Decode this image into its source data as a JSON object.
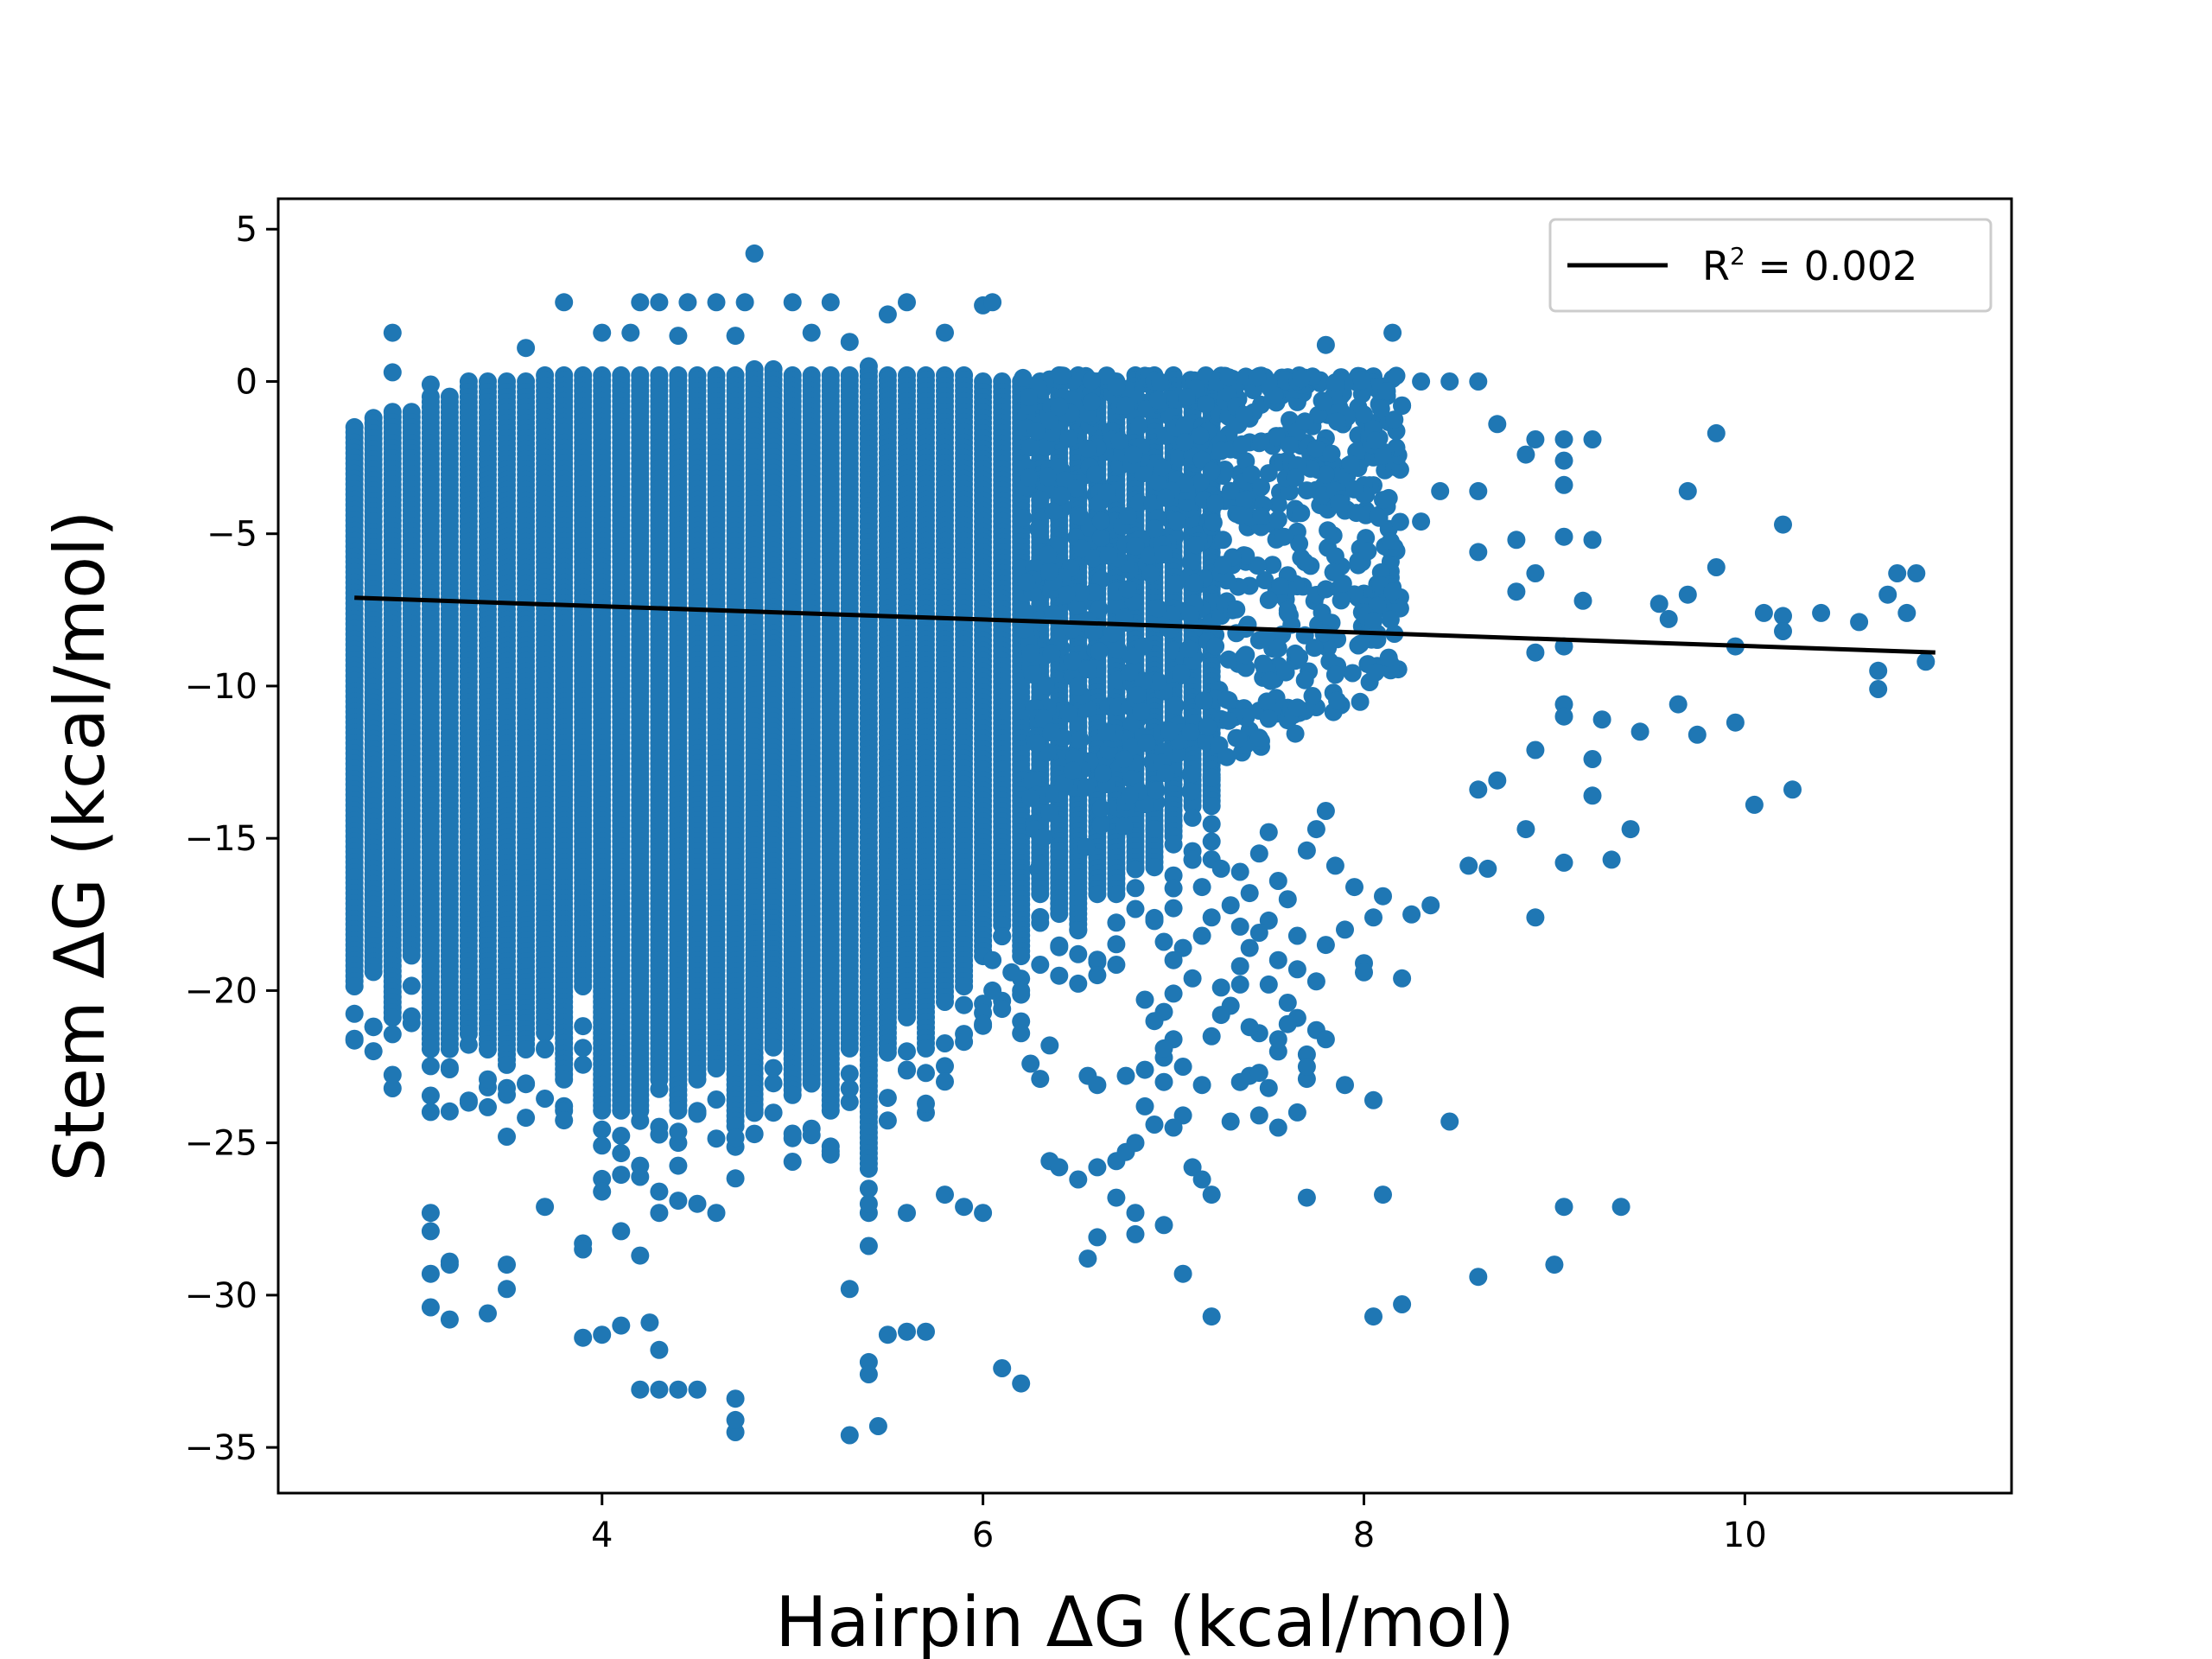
{
  "chart_data": {
    "type": "scatter",
    "title": "",
    "xlabel": "Hairpin ΔG (kcal/mol)",
    "ylabel": "Stem  ΔG (kcal/mol)",
    "xlim": [
      2.3,
      11.4
    ],
    "ylim": [
      -36.5,
      6.0
    ],
    "x_ticks": [
      4,
      6,
      8,
      10
    ],
    "y_ticks": [
      5,
      0,
      -5,
      -10,
      -15,
      -20,
      -25,
      -30,
      -35
    ],
    "grid": false,
    "legend": {
      "position": "top-right",
      "entries": [
        {
          "label_base": "R",
          "label_sup": "2",
          "label_rest": " = 0.002"
        }
      ]
    },
    "colors": {
      "points": "#1f77b4",
      "fit_line": "#000000",
      "axes": "#000000",
      "legend_border": "#cccccc"
    },
    "fit_line": {
      "x": [
        2.7,
        11.0
      ],
      "y": [
        -7.1,
        -8.9
      ]
    },
    "series": [
      {
        "type": "scatter",
        "column_x": [
          2.7,
          2.8,
          2.9,
          3.0,
          3.1,
          3.2,
          3.3,
          3.4,
          3.5,
          3.6,
          3.7,
          3.8,
          3.9,
          4.0,
          4.1,
          4.2,
          4.3,
          4.4,
          4.5,
          4.6,
          4.7,
          4.8,
          4.9,
          5.0,
          5.1,
          5.2,
          5.3,
          5.4,
          5.5,
          5.6,
          5.7,
          5.8,
          5.9,
          6.0,
          6.1,
          6.2,
          6.3,
          6.4,
          6.5,
          6.6,
          6.7,
          6.8,
          6.9,
          7.0,
          7.1,
          7.2
        ],
        "column_ymin": [
          -20,
          -19.5,
          -21,
          -19,
          -22,
          -22,
          -21.5,
          -22,
          -22.5,
          -22,
          -21.5,
          -23,
          -20,
          -24,
          -24,
          -24,
          -23,
          -24,
          -23,
          -22.5,
          -24.5,
          -24,
          -22,
          -23.5,
          -23,
          -24,
          -22,
          -26,
          -22,
          -21,
          -22,
          -20.5,
          -20,
          -19,
          -18,
          -19,
          -17,
          -17.5,
          -18,
          -17,
          -17,
          -16,
          -16,
          -15,
          -14,
          -14
        ],
        "column_ymax": [
          -1.5,
          -1.2,
          -1.0,
          -1.0,
          -0.5,
          -0.5,
          0.0,
          0.0,
          0.0,
          0.0,
          0.2,
          0.2,
          0.2,
          0.2,
          0.2,
          0.2,
          0.2,
          0.2,
          0.2,
          0.2,
          0.2,
          0.4,
          0.4,
          0.2,
          0.2,
          0.2,
          0.2,
          0.5,
          0.2,
          0.2,
          0.2,
          0.2,
          0.2,
          0.0,
          0.0,
          0.0,
          0.0,
          0.2,
          0.2,
          0.0,
          0.0,
          0.2,
          0.2,
          0.2,
          0.0,
          0.0
        ],
        "points": [
          [
            4.8,
            4.2
          ],
          [
            3.8,
            2.6
          ],
          [
            4.2,
            2.6
          ],
          [
            4.3,
            2.6
          ],
          [
            4.45,
            2.6
          ],
          [
            4.6,
            2.6
          ],
          [
            4.75,
            2.6
          ],
          [
            5.0,
            2.6
          ],
          [
            5.2,
            2.6
          ],
          [
            5.6,
            2.6
          ],
          [
            6.0,
            2.5
          ],
          [
            6.05,
            2.6
          ],
          [
            5.5,
            2.2
          ],
          [
            2.9,
            1.6
          ],
          [
            3.6,
            1.1
          ],
          [
            4.0,
            1.6
          ],
          [
            4.15,
            1.6
          ],
          [
            4.4,
            1.5
          ],
          [
            4.7,
            1.5
          ],
          [
            5.1,
            1.6
          ],
          [
            5.3,
            1.3
          ],
          [
            5.8,
            1.6
          ],
          [
            7.8,
            1.2
          ],
          [
            8.15,
            1.6
          ],
          [
            2.9,
            0.3
          ],
          [
            3.1,
            -0.1
          ],
          [
            8.3,
            0.0
          ],
          [
            8.45,
            0.0
          ],
          [
            8.6,
            0.0
          ],
          [
            8.2,
            -0.8
          ],
          [
            8.7,
            -1.4
          ],
          [
            8.9,
            -1.9
          ],
          [
            9.05,
            -1.9
          ],
          [
            9.2,
            -1.9
          ],
          [
            8.85,
            -2.4
          ],
          [
            9.05,
            -2.6
          ],
          [
            9.85,
            -1.7
          ],
          [
            9.05,
            -3.4
          ],
          [
            8.4,
            -3.6
          ],
          [
            8.6,
            -3.6
          ],
          [
            9.7,
            -3.6
          ],
          [
            8.3,
            -4.6
          ],
          [
            9.05,
            -5.1
          ],
          [
            9.2,
            -5.2
          ],
          [
            8.8,
            -5.2
          ],
          [
            10.2,
            -4.7
          ],
          [
            8.6,
            -5.6
          ],
          [
            8.9,
            -6.3
          ],
          [
            9.85,
            -6.1
          ],
          [
            8.8,
            -6.9
          ],
          [
            9.15,
            -7.2
          ],
          [
            9.55,
            -7.3
          ],
          [
            9.6,
            -7.8
          ],
          [
            9.7,
            -7.0
          ],
          [
            10.1,
            -7.6
          ],
          [
            10.2,
            -7.7
          ],
          [
            10.4,
            -7.6
          ],
          [
            10.6,
            -7.9
          ],
          [
            10.2,
            -8.2
          ],
          [
            10.75,
            -7.0
          ],
          [
            10.85,
            -7.6
          ],
          [
            10.8,
            -6.3
          ],
          [
            10.9,
            -6.3
          ],
          [
            10.95,
            -9.2
          ],
          [
            10.7,
            -9.5
          ],
          [
            10.7,
            -10.1
          ],
          [
            9.95,
            -8.7
          ],
          [
            9.05,
            -8.7
          ],
          [
            8.9,
            -8.9
          ],
          [
            9.05,
            -10.6
          ],
          [
            9.05,
            -11.0
          ],
          [
            9.25,
            -11.1
          ],
          [
            9.45,
            -11.5
          ],
          [
            9.65,
            -10.6
          ],
          [
            9.75,
            -11.6
          ],
          [
            9.95,
            -11.2
          ],
          [
            8.9,
            -12.1
          ],
          [
            8.7,
            -13.1
          ],
          [
            8.6,
            -13.4
          ],
          [
            9.2,
            -12.4
          ],
          [
            9.2,
            -13.6
          ],
          [
            10.25,
            -13.4
          ],
          [
            10.05,
            -13.9
          ],
          [
            8.85,
            -14.7
          ],
          [
            9.4,
            -14.7
          ],
          [
            9.3,
            -15.7
          ],
          [
            9.05,
            -15.8
          ],
          [
            8.55,
            -15.9
          ],
          [
            8.65,
            -16.0
          ],
          [
            8.9,
            -17.6
          ],
          [
            8.35,
            -17.2
          ],
          [
            8.25,
            -17.5
          ],
          [
            8.2,
            -19.6
          ],
          [
            8.0,
            -19.1
          ],
          [
            8.0,
            -19.4
          ],
          [
            8.45,
            -24.3
          ],
          [
            7.9,
            -23.1
          ],
          [
            8.05,
            -23.6
          ],
          [
            8.1,
            -26.7
          ],
          [
            8.05,
            -30.7
          ],
          [
            8.2,
            -30.3
          ],
          [
            8.6,
            -29.4
          ],
          [
            9.0,
            -29.0
          ],
          [
            9.05,
            -27.1
          ],
          [
            9.35,
            -27.1
          ],
          [
            7.7,
            -26.8
          ],
          [
            7.2,
            -30.7
          ],
          [
            7.05,
            -29.3
          ],
          [
            6.55,
            -28.8
          ],
          [
            6.2,
            -32.9
          ],
          [
            6.1,
            -32.4
          ],
          [
            5.7,
            -31.2
          ],
          [
            5.45,
            -34.3
          ],
          [
            5.3,
            -34.6
          ],
          [
            4.7,
            -34.5
          ],
          [
            4.7,
            -34.1
          ],
          [
            4.7,
            -33.4
          ],
          [
            4.5,
            -33.1
          ],
          [
            4.4,
            -33.1
          ],
          [
            4.3,
            -33.1
          ],
          [
            4.2,
            -33.1
          ],
          [
            5.4,
            -32.2
          ],
          [
            5.4,
            -32.6
          ],
          [
            5.5,
            -31.3
          ],
          [
            5.6,
            -31.2
          ],
          [
            5.3,
            -29.8
          ],
          [
            4.0,
            -31.3
          ],
          [
            4.1,
            -31.0
          ],
          [
            4.25,
            -30.9
          ],
          [
            4.3,
            -31.8
          ],
          [
            3.9,
            -31.4
          ],
          [
            3.4,
            -30.6
          ],
          [
            3.2,
            -30.8
          ],
          [
            3.1,
            -30.4
          ],
          [
            3.1,
            -29.3
          ],
          [
            3.2,
            -29.0
          ],
          [
            3.2,
            -28.9
          ],
          [
            3.1,
            -27.3
          ],
          [
            3.1,
            -27.9
          ],
          [
            3.5,
            -29.8
          ],
          [
            3.5,
            -29.0
          ],
          [
            3.7,
            -27.1
          ],
          [
            3.9,
            -28.3
          ],
          [
            3.9,
            -28.5
          ],
          [
            4.1,
            -27.9
          ],
          [
            4.2,
            -28.7
          ],
          [
            4.0,
            -26.6
          ],
          [
            4.3,
            -26.6
          ],
          [
            4.3,
            -27.3
          ],
          [
            4.4,
            -26.9
          ],
          [
            4.5,
            -27.0
          ],
          [
            4.6,
            -27.3
          ],
          [
            6.0,
            -27.3
          ],
          [
            5.9,
            -27.1
          ],
          [
            5.8,
            -26.7
          ],
          [
            5.4,
            -27.0
          ],
          [
            5.6,
            -27.3
          ],
          [
            6.35,
            -25.6
          ],
          [
            6.4,
            -25.8
          ],
          [
            6.5,
            -26.2
          ],
          [
            6.6,
            -25.8
          ],
          [
            6.7,
            -25.6
          ],
          [
            6.7,
            -26.8
          ],
          [
            6.8,
            -27.3
          ],
          [
            6.8,
            -28.0
          ],
          [
            6.95,
            -27.7
          ],
          [
            6.6,
            -28.1
          ],
          [
            7.1,
            -25.8
          ],
          [
            7.15,
            -26.2
          ],
          [
            7.2,
            -26.7
          ],
          [
            7.3,
            -24.3
          ],
          [
            7.45,
            -24.1
          ],
          [
            7.55,
            -24.5
          ],
          [
            7.65,
            -24.0
          ],
          [
            7.7,
            -22.9
          ],
          [
            7.55,
            -22.0
          ],
          [
            7.4,
            -22.8
          ],
          [
            7.35,
            -23.0
          ],
          [
            7.45,
            -22.7
          ],
          [
            7.5,
            -23.2
          ],
          [
            7.05,
            -24.1
          ],
          [
            7.0,
            -24.5
          ],
          [
            6.9,
            -24.4
          ],
          [
            6.8,
            -25.0
          ],
          [
            6.75,
            -25.3
          ],
          [
            6.85,
            -23.8
          ],
          [
            6.95,
            -23.0
          ],
          [
            6.85,
            -22.6
          ],
          [
            6.75,
            -22.8
          ],
          [
            6.95,
            -22.2
          ],
          [
            6.55,
            -22.8
          ],
          [
            6.6,
            -23.1
          ],
          [
            6.3,
            -22.9
          ],
          [
            6.25,
            -22.4
          ],
          [
            6.35,
            -21.8
          ],
          [
            6.2,
            -21.4
          ],
          [
            6.2,
            -20.0
          ],
          [
            6.0,
            -21.1
          ],
          [
            6.1,
            -20.6
          ],
          [
            6.05,
            -20.0
          ],
          [
            6.15,
            -19.4
          ],
          [
            6.05,
            -19.0
          ],
          [
            6.85,
            -20.3
          ],
          [
            6.95,
            -20.7
          ],
          [
            6.9,
            -21.0
          ],
          [
            7.0,
            -20.1
          ],
          [
            7.1,
            -19.6
          ],
          [
            7.25,
            -19.9
          ],
          [
            7.35,
            -19.8
          ],
          [
            7.5,
            -19.8
          ],
          [
            7.6,
            -20.4
          ],
          [
            7.65,
            -20.9
          ],
          [
            7.75,
            -21.3
          ],
          [
            7.8,
            -21.6
          ],
          [
            7.7,
            -22.1
          ],
          [
            7.55,
            -21.6
          ],
          [
            7.45,
            -21.4
          ],
          [
            7.2,
            -21.5
          ],
          [
            7.0,
            -21.6
          ],
          [
            6.95,
            -21.9
          ],
          [
            7.05,
            -22.5
          ],
          [
            7.15,
            -23.1
          ],
          [
            7.25,
            -20.8
          ],
          [
            7.3,
            -20.5
          ],
          [
            7.4,
            -21.2
          ],
          [
            7.6,
            -21.1
          ],
          [
            7.7,
            -22.5
          ],
          [
            7.75,
            -19.7
          ],
          [
            7.8,
            -18.5
          ],
          [
            7.9,
            -18.0
          ],
          [
            8.05,
            -17.6
          ],
          [
            8.1,
            -16.9
          ],
          [
            7.95,
            -16.6
          ],
          [
            7.85,
            -15.9
          ],
          [
            7.7,
            -15.4
          ],
          [
            7.75,
            -14.7
          ],
          [
            7.8,
            -14.1
          ],
          [
            7.5,
            -14.8
          ],
          [
            7.45,
            -15.5
          ],
          [
            7.35,
            -16.1
          ],
          [
            7.4,
            -16.8
          ],
          [
            7.3,
            -17.2
          ],
          [
            7.2,
            -17.6
          ],
          [
            7.15,
            -18.2
          ],
          [
            7.05,
            -18.6
          ],
          [
            7.0,
            -19.0
          ],
          [
            6.95,
            -18.4
          ],
          [
            7.25,
            -16.0
          ],
          [
            7.15,
            -16.6
          ],
          [
            7.1,
            -15.7
          ],
          [
            7.0,
            -15.2
          ],
          [
            6.9,
            -14.7
          ],
          [
            7.55,
            -16.4
          ],
          [
            7.6,
            -17.0
          ],
          [
            7.5,
            -17.7
          ],
          [
            7.65,
            -18.2
          ],
          [
            7.4,
            -18.6
          ],
          [
            7.35,
            -19.2
          ],
          [
            7.55,
            -19.0
          ],
          [
            7.65,
            -19.3
          ],
          [
            7.45,
            -18.1
          ],
          [
            7.35,
            -17.9
          ]
        ],
        "cloud_right": {
          "x_range": [
            6.2,
            8.2
          ],
          "y_top": 0.2,
          "y_bottom": -16.5
        }
      }
    ]
  }
}
